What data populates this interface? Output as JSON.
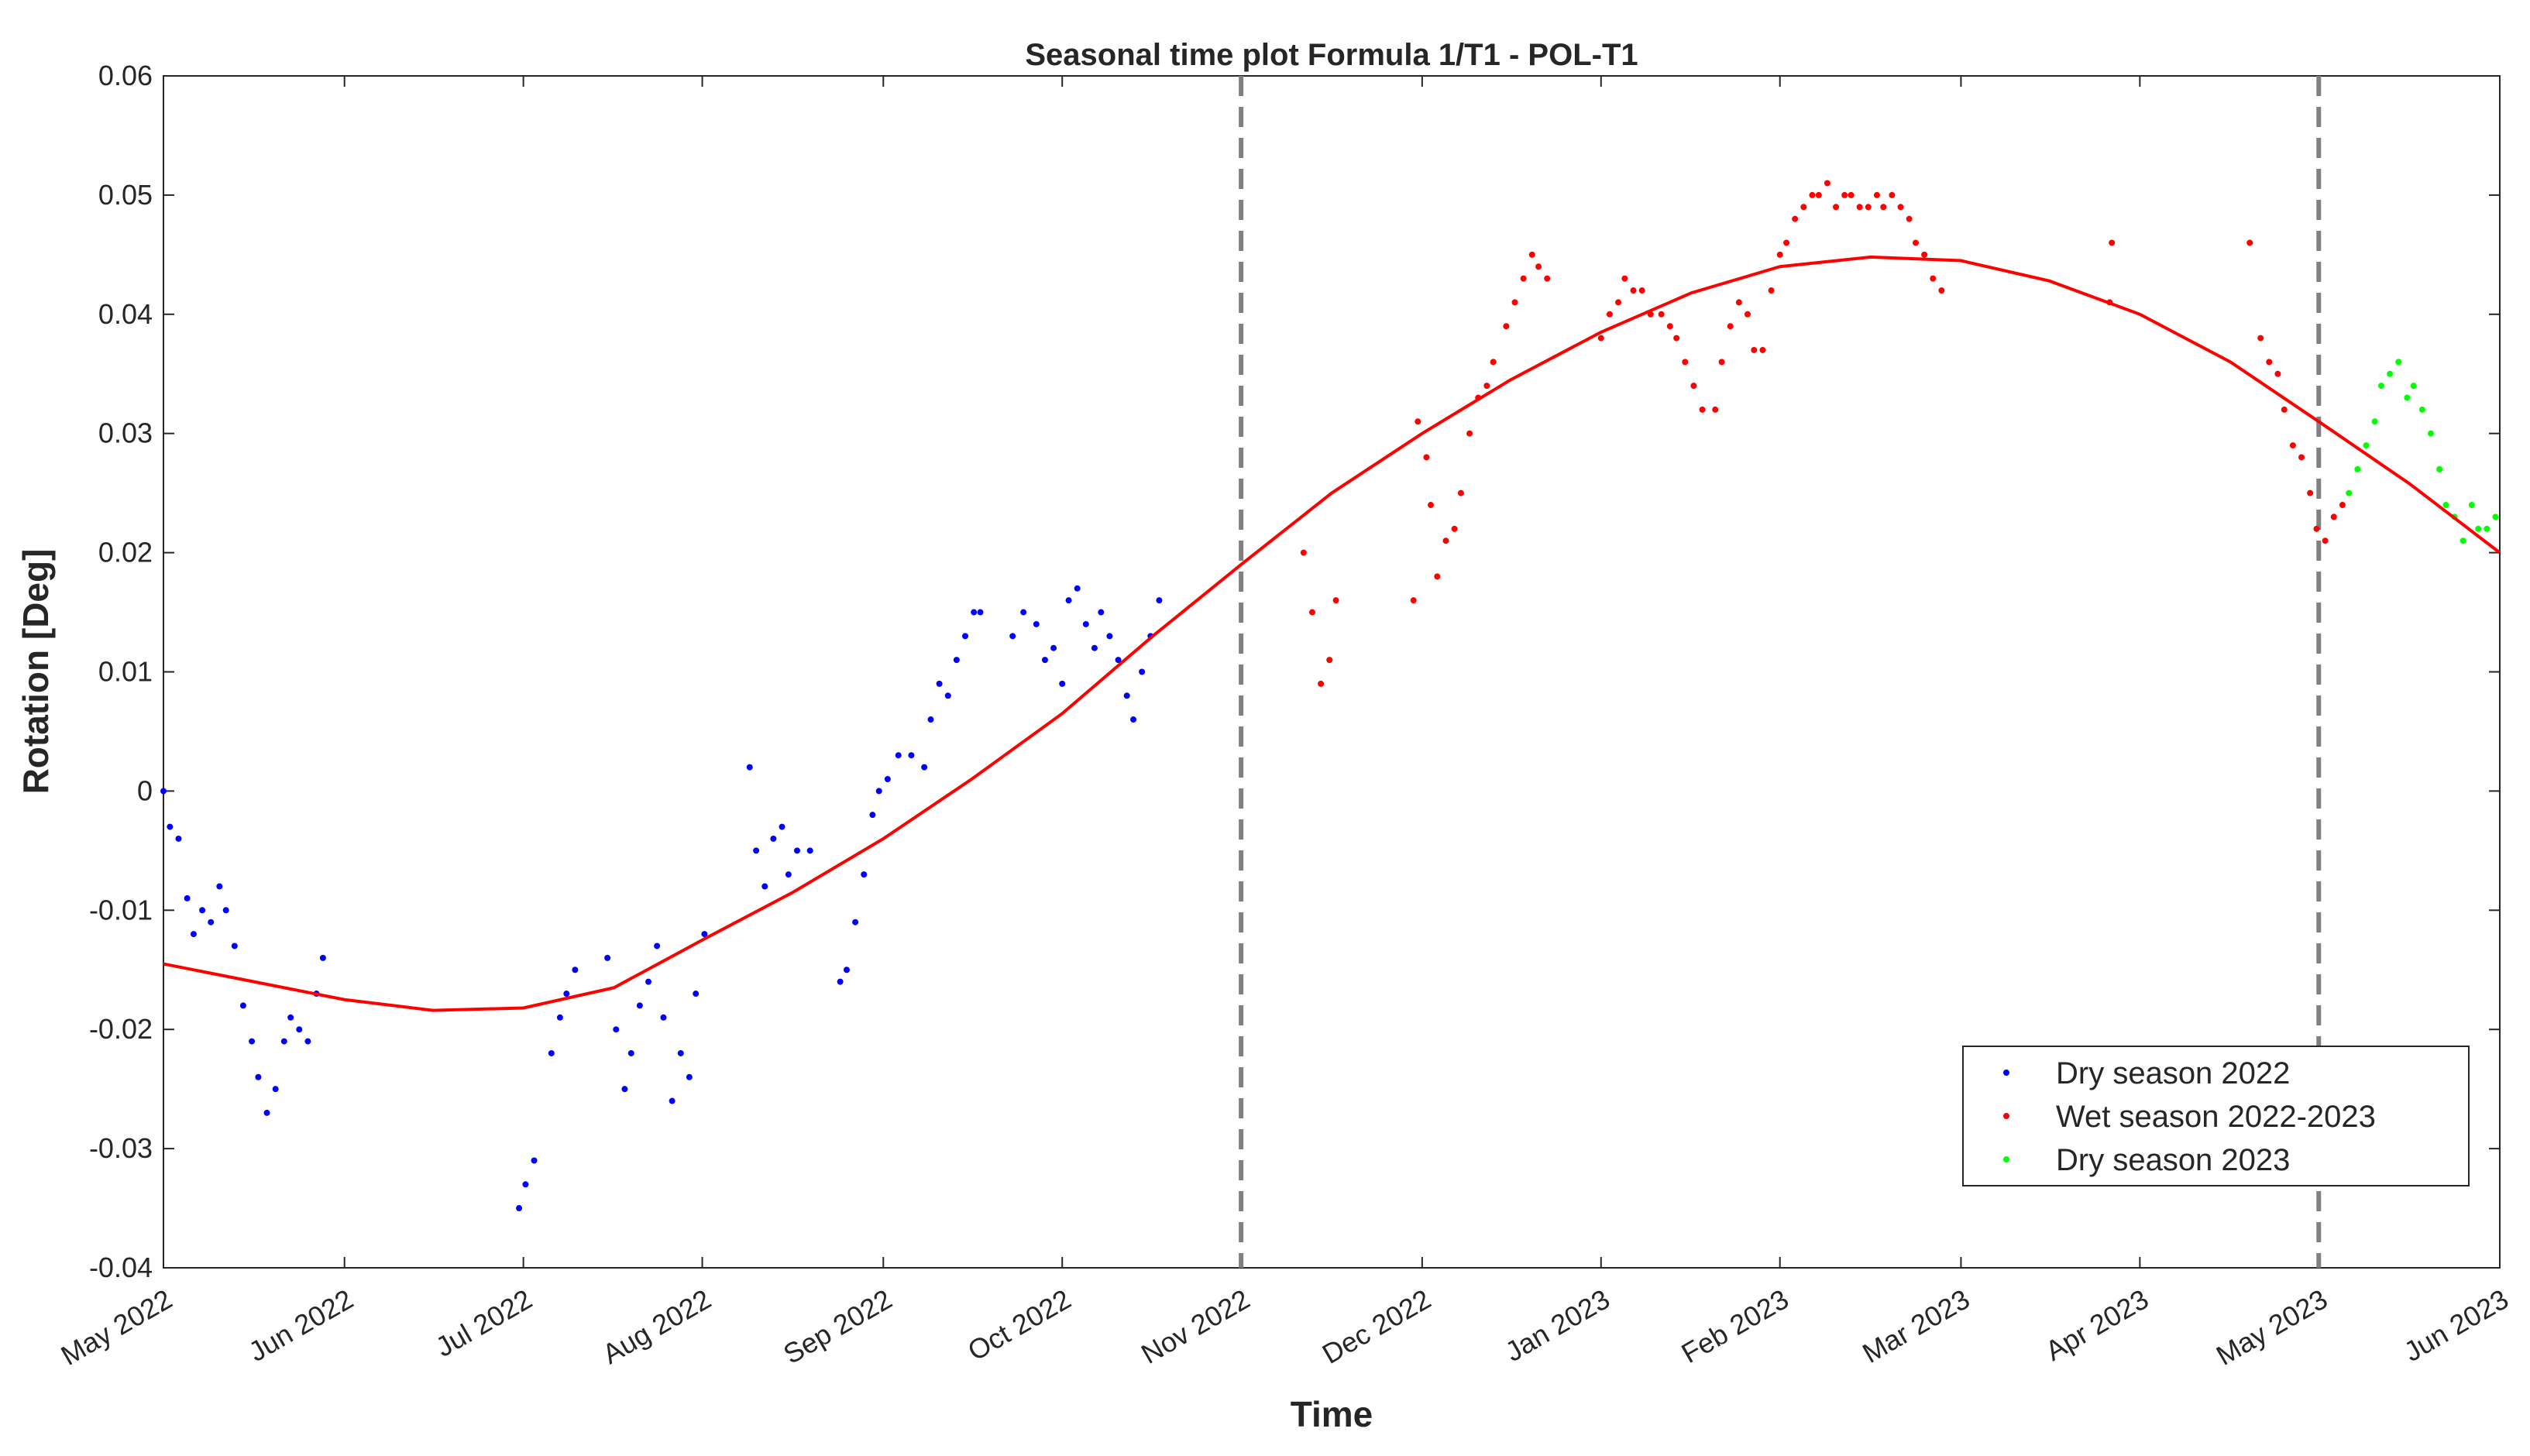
{
  "chart_data": {
    "type": "scatter",
    "title": "Seasonal time plot Formula 1/T1 - POL-T1",
    "x_label": "Time",
    "y_label": "Rotation [Deg]",
    "xlim": [
      2022.333,
      2023.417
    ],
    "ylim": [
      -0.04,
      0.06
    ],
    "xticks": [
      {
        "value": 2022.333,
        "label": "May 2022"
      },
      {
        "value": 2022.417,
        "label": "Jun 2022"
      },
      {
        "value": 2022.5,
        "label": "Jul 2022"
      },
      {
        "value": 2022.583,
        "label": "Aug 2022"
      },
      {
        "value": 2022.667,
        "label": "Sep 2022"
      },
      {
        "value": 2022.75,
        "label": "Oct 2022"
      },
      {
        "value": 2022.833,
        "label": "Nov 2022"
      },
      {
        "value": 2022.917,
        "label": "Dec 2022"
      },
      {
        "value": 2023,
        "label": "Jan 2023"
      },
      {
        "value": 2023.083,
        "label": "Feb 2023"
      },
      {
        "value": 2023.167,
        "label": "Mar 2023"
      },
      {
        "value": 2023.25,
        "label": "Apr 2023"
      },
      {
        "value": 2023.333,
        "label": "May 2023"
      },
      {
        "value": 2023.417,
        "label": "Jun 2023"
      }
    ],
    "yticks": [
      -0.04,
      -0.03,
      -0.02,
      -0.01,
      0,
      0.01,
      0.02,
      0.03,
      0.04,
      0.05,
      0.06
    ],
    "legend_position": "lower right",
    "series": [
      {
        "name": "Dry season 2022",
        "color": "#0000ff",
        "x": [
          2022.333,
          2022.336,
          2022.34,
          2022.344,
          2022.347,
          2022.351,
          2022.355,
          2022.359,
          2022.362,
          2022.366,
          2022.37,
          2022.374,
          2022.377,
          2022.381,
          2022.385,
          2022.389,
          2022.392,
          2022.396,
          2022.4,
          2022.404,
          2022.407,
          2022.498,
          2022.501,
          2022.505,
          2022.513,
          2022.517,
          2022.52,
          2022.524,
          2022.539,
          2022.543,
          2022.547,
          2022.55,
          2022.554,
          2022.558,
          2022.562,
          2022.565,
          2022.569,
          2022.573,
          2022.577,
          2022.58,
          2022.584,
          2022.605,
          2022.608,
          2022.612,
          2022.616,
          2022.62,
          2022.623,
          2022.627,
          2022.633,
          2022.647,
          2022.65,
          2022.654,
          2022.658,
          2022.662,
          2022.665,
          2022.669,
          2022.674,
          2022.68,
          2022.686,
          2022.689,
          2022.693,
          2022.697,
          2022.701,
          2022.705,
          2022.709,
          2022.712,
          2022.727,
          2022.732,
          2022.738,
          2022.742,
          2022.746,
          2022.75,
          2022.753,
          2022.757,
          2022.761,
          2022.765,
          2022.768,
          2022.772,
          2022.776,
          2022.78,
          2022.783,
          2022.787,
          2022.791,
          2022.795
        ],
        "values": [
          0,
          -0.003,
          -0.004,
          -0.009,
          -0.012,
          -0.01,
          -0.011,
          -0.008,
          -0.01,
          -0.013,
          -0.018,
          -0.021,
          -0.024,
          -0.027,
          -0.025,
          -0.021,
          -0.019,
          -0.02,
          -0.021,
          -0.017,
          -0.014,
          -0.035,
          -0.033,
          -0.031,
          -0.022,
          -0.019,
          -0.017,
          -0.015,
          -0.014,
          -0.02,
          -0.025,
          -0.022,
          -0.018,
          -0.016,
          -0.013,
          -0.019,
          -0.026,
          -0.022,
          -0.024,
          -0.017,
          -0.012,
          0.002,
          -0.005,
          -0.008,
          -0.004,
          -0.003,
          -0.007,
          -0.005,
          -0.005,
          -0.016,
          -0.015,
          -0.011,
          -0.007,
          -0.002,
          0,
          0.001,
          0.003,
          0.003,
          0.002,
          0.006,
          0.009,
          0.008,
          0.011,
          0.013,
          0.015,
          0.015,
          0.013,
          0.015,
          0.014,
          0.011,
          0.012,
          0.009,
          0.016,
          0.017,
          0.014,
          0.012,
          0.015,
          0.013,
          0.011,
          0.008,
          0.006,
          0.01,
          0.013,
          0.016
        ]
      },
      {
        "name": "Wet season 2022-2023",
        "color": "#ff0000",
        "x": [
          2022.862,
          2022.866,
          2022.87,
          2022.874,
          2022.877,
          2022.913,
          2022.915,
          2022.919,
          2022.921,
          2022.924,
          2022.928,
          2022.932,
          2022.935,
          2022.939,
          2022.943,
          2022.947,
          2022.95,
          2022.956,
          2022.96,
          2022.964,
          2022.968,
          2022.971,
          2022.975,
          2023.0,
          2023.004,
          2023.008,
          2023.011,
          2023.015,
          2023.019,
          2023.023,
          2023.028,
          2023.032,
          2023.035,
          2023.039,
          2023.043,
          2023.047,
          2023.053,
          2023.056,
          2023.06,
          2023.064,
          2023.068,
          2023.071,
          2023.075,
          2023.079,
          2023.083,
          2023.086,
          2023.09,
          2023.094,
          2023.098,
          2023.101,
          2023.105,
          2023.109,
          2023.113,
          2023.116,
          2023.12,
          2023.124,
          2023.128,
          2023.131,
          2023.135,
          2023.139,
          2023.143,
          2023.146,
          2023.15,
          2023.154,
          2023.158,
          2023.236,
          2023.237,
          2023.301,
          2023.306,
          2023.31,
          2023.314,
          2023.317,
          2023.321,
          2023.325,
          2023.329,
          2023.332,
          2023.336,
          2023.34,
          2023.344
        ],
        "values": [
          0.02,
          0.015,
          0.009,
          0.011,
          0.016,
          0.016,
          0.031,
          0.028,
          0.024,
          0.018,
          0.021,
          0.022,
          0.025,
          0.03,
          0.033,
          0.034,
          0.036,
          0.039,
          0.041,
          0.043,
          0.045,
          0.044,
          0.043,
          0.038,
          0.04,
          0.041,
          0.043,
          0.042,
          0.042,
          0.04,
          0.04,
          0.039,
          0.038,
          0.036,
          0.034,
          0.032,
          0.032,
          0.036,
          0.039,
          0.041,
          0.04,
          0.037,
          0.037,
          0.042,
          0.045,
          0.046,
          0.048,
          0.049,
          0.05,
          0.05,
          0.051,
          0.049,
          0.05,
          0.05,
          0.049,
          0.049,
          0.05,
          0.049,
          0.05,
          0.049,
          0.048,
          0.046,
          0.045,
          0.043,
          0.042,
          0.041,
          0.046,
          0.046,
          0.038,
          0.036,
          0.035,
          0.032,
          0.029,
          0.028,
          0.025,
          0.022,
          0.021,
          0.023,
          0.024
        ]
      },
      {
        "name": "Dry season 2023",
        "color": "#00ff00",
        "x": [
          2023.347,
          2023.351,
          2023.355,
          2023.359,
          2023.362,
          2023.366,
          2023.37,
          2023.374,
          2023.377,
          2023.381,
          2023.385,
          2023.389,
          2023.392,
          2023.396,
          2023.4,
          2023.404,
          2023.407,
          2023.411,
          2023.415
        ],
        "values": [
          0.025,
          0.027,
          0.029,
          0.031,
          0.034,
          0.035,
          0.036,
          0.033,
          0.034,
          0.032,
          0.03,
          0.027,
          0.024,
          0.023,
          0.021,
          0.024,
          0.022,
          0.022,
          0.023
        ]
      }
    ],
    "fit": {
      "color": "#ff0000",
      "x": [
        2022.333,
        2022.375,
        2022.417,
        2022.458,
        2022.5,
        2022.542,
        2022.583,
        2022.625,
        2022.667,
        2022.708,
        2022.75,
        2022.792,
        2022.833,
        2022.875,
        2022.917,
        2022.958,
        2023,
        2023.042,
        2023.083,
        2023.125,
        2023.167,
        2023.208,
        2023.25,
        2023.292,
        2023.333,
        2023.375,
        2023.417
      ],
      "values": [
        -0.0145,
        -0.016,
        -0.0175,
        -0.0184,
        -0.0182,
        -0.0165,
        -0.0125,
        -0.0085,
        -0.004,
        0.001,
        0.0065,
        0.013,
        0.019,
        0.025,
        0.03,
        0.0345,
        0.0385,
        0.0418,
        0.044,
        0.0448,
        0.0445,
        0.0428,
        0.04,
        0.036,
        0.031,
        0.0258,
        0.02
      ]
    },
    "vlines": [
      2022.833,
      2023.333
    ]
  }
}
